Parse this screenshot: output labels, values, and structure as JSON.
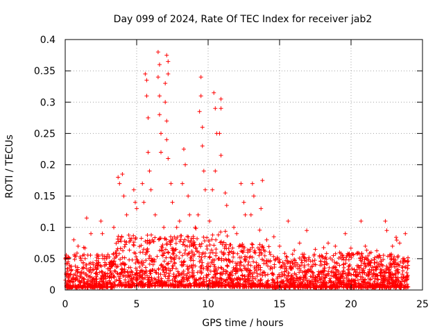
{
  "chart_data": {
    "type": "scatter",
    "title": "Day 099 of 2024, Rate Of TEC Index for receiver jab2",
    "xlabel": "GPS time / hours",
    "ylabel": "ROTI / TECUs",
    "xlim": [
      0,
      25
    ],
    "ylim": [
      0,
      0.4
    ],
    "x_ticks": [
      "0",
      "5",
      "10",
      "15",
      "20",
      "25"
    ],
    "y_ticks": [
      "0",
      "0.05",
      "0.1",
      "0.15",
      "0.2",
      "0.25",
      "0.3",
      "0.35",
      "0.4"
    ],
    "grid": true,
    "marker": "+",
    "color": "#ff0000",
    "series": [
      {
        "name": "ROTI",
        "points": [
          [
            6.5,
            0.38
          ],
          [
            6.6,
            0.36
          ],
          [
            7.1,
            0.375
          ],
          [
            7.2,
            0.365
          ],
          [
            7.2,
            0.345
          ],
          [
            5.6,
            0.345
          ],
          [
            5.7,
            0.335
          ],
          [
            5.7,
            0.31
          ],
          [
            5.8,
            0.275
          ],
          [
            5.8,
            0.22
          ],
          [
            6.5,
            0.34
          ],
          [
            6.6,
            0.31
          ],
          [
            6.6,
            0.28
          ],
          [
            6.7,
            0.25
          ],
          [
            6.7,
            0.22
          ],
          [
            7.0,
            0.33
          ],
          [
            7.0,
            0.3
          ],
          [
            7.1,
            0.27
          ],
          [
            7.1,
            0.24
          ],
          [
            7.2,
            0.21
          ],
          [
            9.5,
            0.34
          ],
          [
            9.5,
            0.31
          ],
          [
            9.4,
            0.285
          ],
          [
            9.6,
            0.26
          ],
          [
            9.6,
            0.23
          ],
          [
            10.4,
            0.315
          ],
          [
            10.5,
            0.29
          ],
          [
            10.9,
            0.305
          ],
          [
            10.9,
            0.29
          ],
          [
            10.6,
            0.25
          ],
          [
            10.8,
            0.25
          ],
          [
            10.9,
            0.215
          ],
          [
            8.3,
            0.225
          ],
          [
            8.4,
            0.2
          ],
          [
            8.2,
            0.17
          ],
          [
            5.9,
            0.19
          ],
          [
            6.0,
            0.16
          ],
          [
            7.4,
            0.17
          ],
          [
            7.5,
            0.14
          ],
          [
            9.7,
            0.19
          ],
          [
            9.8,
            0.16
          ],
          [
            10.5,
            0.19
          ],
          [
            10.3,
            0.16
          ],
          [
            11.2,
            0.155
          ],
          [
            11.3,
            0.135
          ],
          [
            3.7,
            0.18
          ],
          [
            3.8,
            0.17
          ],
          [
            4.0,
            0.185
          ],
          [
            4.1,
            0.15
          ],
          [
            4.3,
            0.12
          ],
          [
            4.8,
            0.16
          ],
          [
            4.9,
            0.14
          ],
          [
            5.0,
            0.13
          ],
          [
            5.4,
            0.17
          ],
          [
            5.5,
            0.14
          ],
          [
            12.3,
            0.17
          ],
          [
            12.5,
            0.14
          ],
          [
            12.6,
            0.12
          ],
          [
            13.1,
            0.17
          ],
          [
            13.2,
            0.15
          ],
          [
            13.8,
            0.175
          ],
          [
            13.7,
            0.13
          ],
          [
            13.0,
            0.12
          ],
          [
            8.6,
            0.15
          ],
          [
            8.7,
            0.12
          ],
          [
            1.5,
            0.115
          ],
          [
            1.8,
            0.09
          ],
          [
            2.5,
            0.11
          ],
          [
            2.6,
            0.09
          ],
          [
            3.4,
            0.1
          ],
          [
            15.6,
            0.11
          ],
          [
            16.9,
            0.095
          ],
          [
            19.6,
            0.09
          ],
          [
            20.7,
            0.11
          ],
          [
            22.4,
            0.11
          ],
          [
            22.5,
            0.095
          ],
          [
            18.4,
            0.075
          ],
          [
            23.8,
            0.09
          ],
          [
            0.6,
            0.08
          ],
          [
            0.9,
            0.07
          ],
          [
            11.8,
            0.1
          ],
          [
            12.0,
            0.09
          ],
          [
            14.1,
            0.08
          ],
          [
            14.6,
            0.085
          ],
          [
            15.0,
            0.07
          ],
          [
            16.4,
            0.075
          ],
          [
            17.5,
            0.065
          ],
          [
            18.9,
            0.07
          ],
          [
            19.2,
            0.06
          ],
          [
            21.0,
            0.07
          ],
          [
            21.4,
            0.06
          ],
          [
            22.9,
            0.07
          ],
          [
            23.4,
            0.075
          ],
          [
            6.3,
            0.12
          ],
          [
            6.9,
            0.1
          ],
          [
            7.8,
            0.1
          ],
          [
            8.0,
            0.11
          ],
          [
            9.1,
            0.1
          ],
          [
            9.3,
            0.12
          ],
          [
            10.1,
            0.11
          ]
        ]
      }
    ]
  }
}
